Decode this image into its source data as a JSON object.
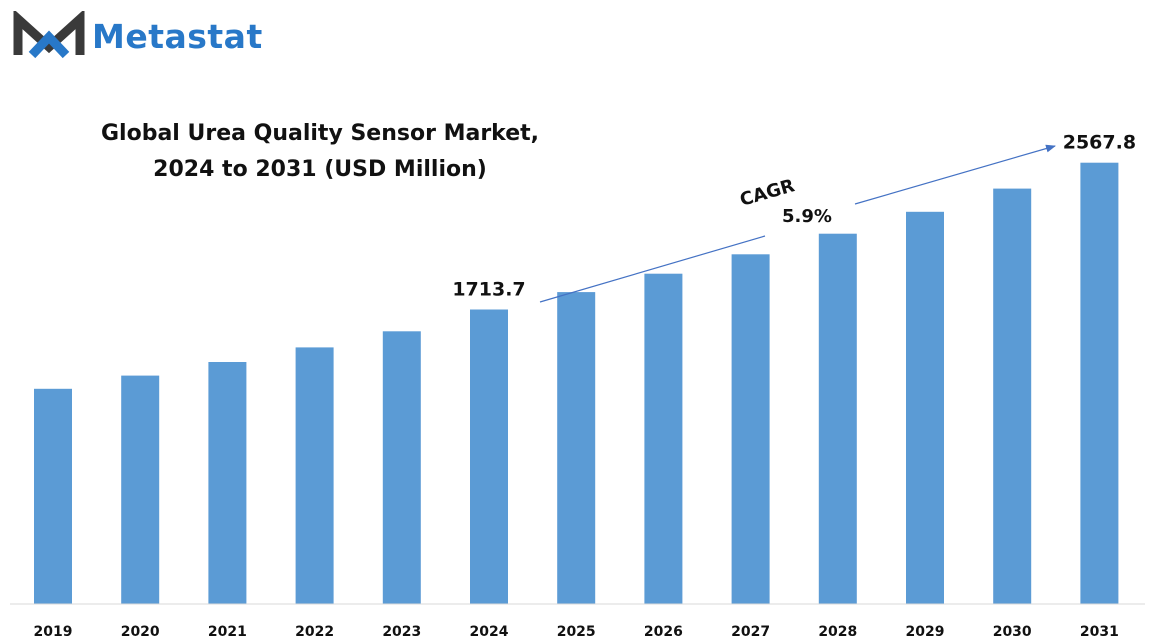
{
  "brand": {
    "name": "Metastat",
    "icon": "metastat-logo-icon",
    "colors": {
      "dark": "#3a3a3a",
      "blue": "#2878c8"
    }
  },
  "chart_data": {
    "type": "bar",
    "title": "Global Urea Quality Sensor Market,",
    "subtitle": "2024 to 2031 (USD Million)",
    "categories": [
      "2019",
      "2020",
      "2021",
      "2022",
      "2023",
      "2024",
      "2025",
      "2026",
      "2027",
      "2028",
      "2029",
      "2030",
      "2031"
    ],
    "values": [
      1252,
      1329,
      1408,
      1493,
      1587,
      1713.7,
      1815,
      1922,
      2035,
      2155,
      2282,
      2417,
      2567.8
    ],
    "data_labels": [
      {
        "category": "2024",
        "text": "1713.7"
      },
      {
        "category": "2031",
        "text": "2567.8"
      }
    ],
    "annotation": {
      "label": "CAGR",
      "value": "5.9%",
      "from": "2024",
      "to": "2031"
    },
    "xlabel": "",
    "ylabel": "",
    "ylim": [
      0,
      2700
    ],
    "grid": false,
    "legend": "none",
    "bar_color": "#5b9bd5",
    "arrow_color": "#4472c4"
  }
}
